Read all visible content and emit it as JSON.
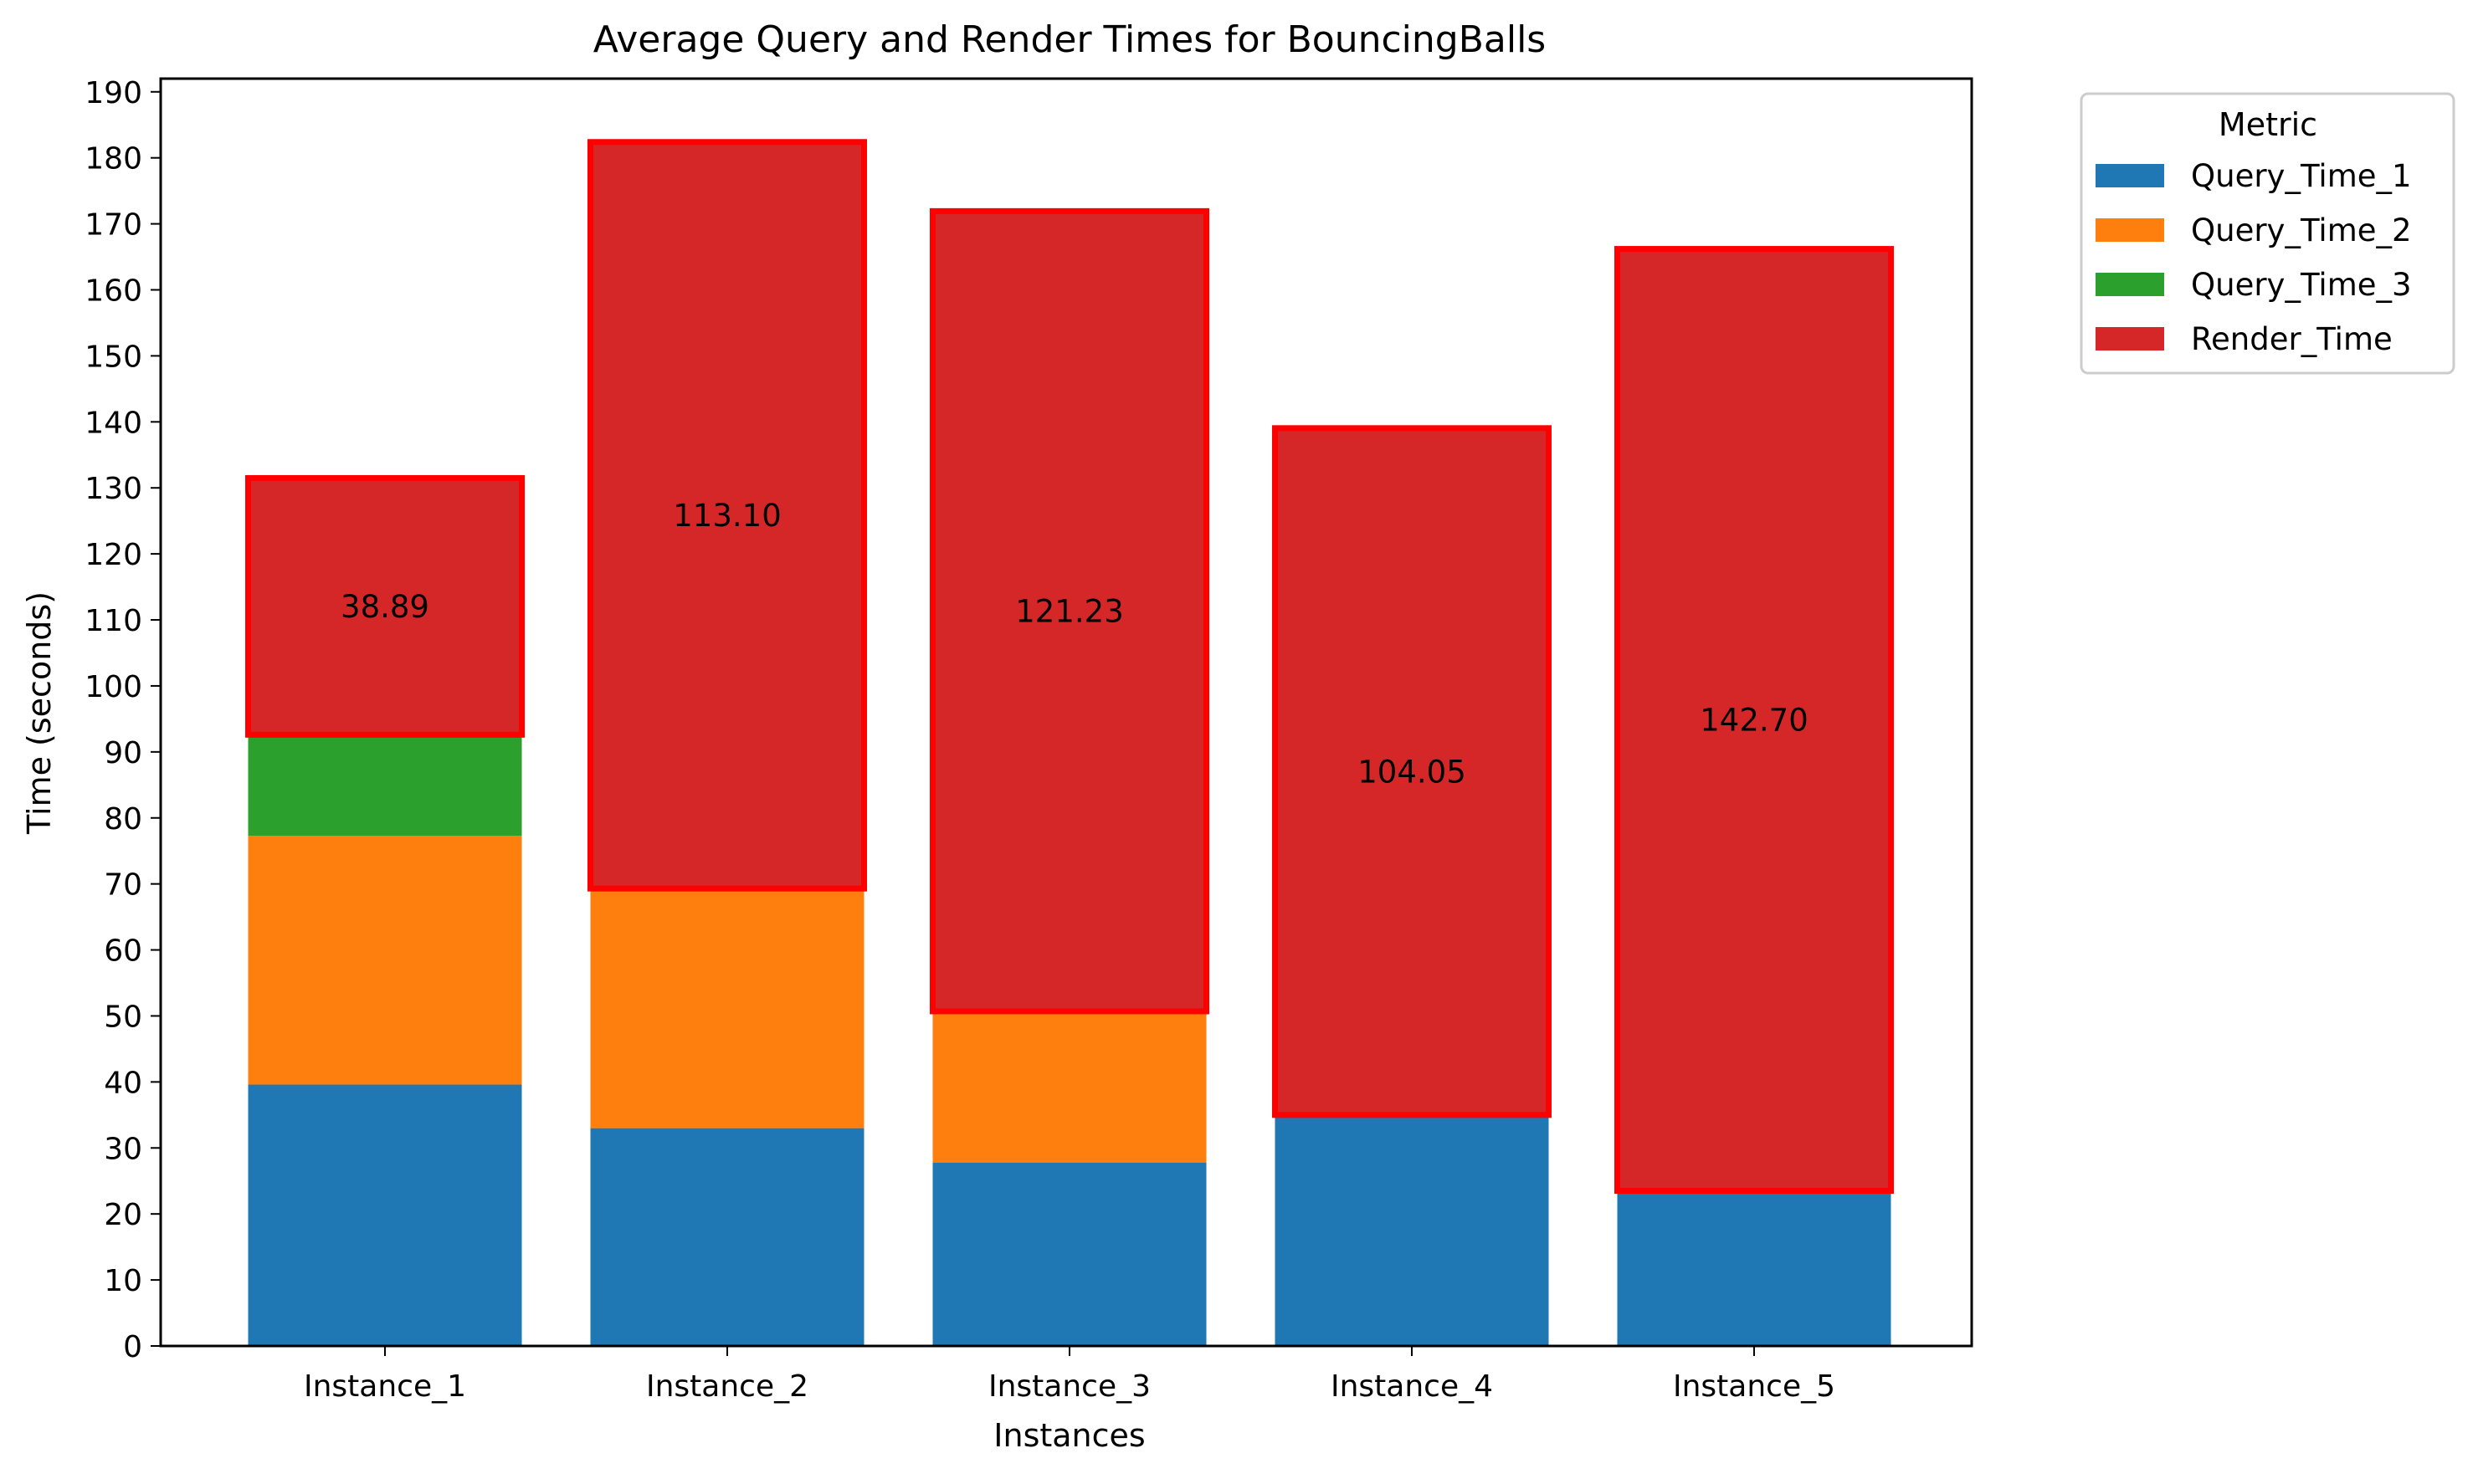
{
  "chart_data": {
    "type": "bar",
    "stacked": true,
    "title": "Average Query and Render Times for BouncingBalls",
    "xlabel": "Instances",
    "ylabel": "Time (seconds)",
    "ylim": [
      0,
      192
    ],
    "yticks": [
      0,
      10,
      20,
      30,
      40,
      50,
      60,
      70,
      80,
      90,
      100,
      110,
      120,
      130,
      140,
      150,
      160,
      170,
      180,
      190
    ],
    "grid": false,
    "legend_position": "outside-top-right",
    "categories": [
      "Instance_1",
      "Instance_2",
      "Instance_3",
      "Instance_4",
      "Instance_5"
    ],
    "series": [
      {
        "name": "Query_Time_1",
        "color": "#1f77b4",
        "values": [
          39.6,
          33.0,
          27.8,
          35.0,
          23.5
        ]
      },
      {
        "name": "Query_Time_2",
        "color": "#ff7f0e",
        "values": [
          37.7,
          36.3,
          22.9,
          0,
          0
        ]
      },
      {
        "name": "Query_Time_3",
        "color": "#2ca02c",
        "values": [
          15.3,
          0,
          0,
          0,
          0
        ]
      },
      {
        "name": "Render_Time",
        "color": "#d62728",
        "values": [
          38.89,
          113.1,
          121.23,
          104.05,
          142.7
        ],
        "edge_color": "#ff0000"
      }
    ],
    "data_labels": [
      "38.89",
      "113.10",
      "121.23",
      "104.05",
      "142.70"
    ],
    "legend_title": "Metric"
  }
}
